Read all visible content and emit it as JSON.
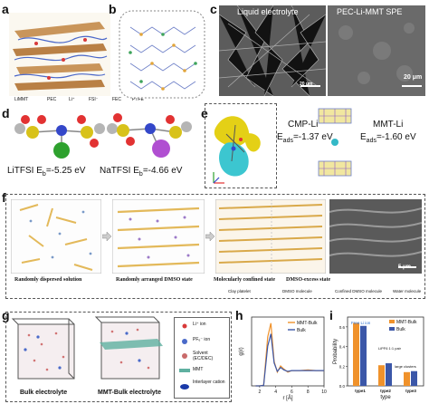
{
  "panels": {
    "a": {
      "letter": "a",
      "legend": [
        "LiMMT",
        "PEC",
        "Li⁺",
        "FSI⁻",
        "FEC",
        "PTFE"
      ]
    },
    "b": {
      "letter": "b"
    },
    "c": {
      "letter": "c",
      "left_title": "Liquid electrolyte",
      "right_title": "PEC-Li-MMT SPE",
      "scale_left": "20 μm",
      "scale_right": "20 μm"
    },
    "d": {
      "letter": "d",
      "label_left": "LiTFSI E",
      "sub_left": "b",
      "value_left": "=-5.25 eV",
      "label_right": "NaTFSI E",
      "sub_right": "b",
      "value_right": "=-4.66 eV"
    },
    "e": {
      "letter": "e",
      "left_name": "CMP-Li",
      "left_e": "E",
      "left_sub": "ads",
      "left_val": "=-1.37 eV",
      "right_name": "MMT-Li",
      "right_e": "E",
      "right_sub": "ads",
      "right_val": "=-1.60 eV"
    },
    "f": {
      "letter": "f",
      "captions": [
        "Randomly dispersed solution",
        "Randomly arranged DMSO state",
        "Molecularly confined state",
        "DMSO-excess state"
      ],
      "legend": [
        "Clay platelet",
        "DMSO molecule",
        "Confined DMSO molecule",
        "Water molecule"
      ],
      "scale": "5 μm"
    },
    "g": {
      "letter": "g",
      "captions": [
        "Bulk electrolyte",
        "MMT-Bulk electrolyte"
      ],
      "legend": [
        "Li⁺ ion",
        "PF₆⁻ ion",
        "Solvent (EC/DEC)",
        "MMT",
        "Interlayer cation"
      ]
    },
    "h": {
      "letter": "h",
      "ylabel": "g(r)",
      "xlabel": "r [Å]",
      "legend": [
        "MMT-Bulk",
        "Bulk"
      ],
      "xticks": [
        "2",
        "4",
        "6",
        "8",
        "10"
      ]
    },
    "i": {
      "letter": "i",
      "ylabel": "Probability",
      "xlabel": "type",
      "legend": [
        "MMT-Bulk",
        "Bulk"
      ],
      "annotations": [
        "Free Li ion",
        "LiPF6 1:1 pair",
        "large clusters"
      ],
      "yticks": [
        "0.0",
        "0.2",
        "0.4",
        "0.6"
      ]
    }
  },
  "colors": {
    "orange": "#f0922b",
    "blue": "#3b57a8",
    "yellow": "#e5c400",
    "cyan": "#34b9c7"
  },
  "chart_data": [
    {
      "type": "line",
      "panel": "h",
      "xlabel": "r [Å]",
      "ylabel": "g(r)",
      "xlim": [
        1,
        10
      ],
      "series": [
        {
          "name": "MMT-Bulk",
          "x": [
            1.5,
            2.0,
            2.5,
            3.0,
            3.4,
            3.8,
            4.2,
            4.6,
            5.0,
            5.5,
            6.0,
            7.0,
            8.0,
            9.0,
            10.0
          ],
          "y": [
            0,
            0,
            0.05,
            3.2,
            4.1,
            1.6,
            0.9,
            1.3,
            1.1,
            0.9,
            1.0,
            1.0,
            1.05,
            1.0,
            1.0
          ]
        },
        {
          "name": "Bulk",
          "x": [
            1.5,
            2.0,
            2.5,
            3.0,
            3.4,
            3.8,
            4.2,
            4.6,
            5.0,
            5.5,
            6.0,
            7.0,
            8.0,
            9.0,
            10.0
          ],
          "y": [
            0,
            0,
            0.03,
            2.6,
            3.4,
            1.5,
            0.95,
            1.2,
            1.05,
            0.95,
            1.0,
            1.0,
            1.0,
            1.0,
            1.0
          ]
        }
      ]
    },
    {
      "type": "bar",
      "panel": "i",
      "xlabel": "type",
      "ylabel": "Probability",
      "ylim": [
        0,
        0.7
      ],
      "categories": [
        "type1",
        "type2",
        "type3"
      ],
      "series": [
        {
          "name": "MMT-Bulk",
          "values": [
            0.64,
            0.21,
            0.14
          ]
        },
        {
          "name": "Bulk",
          "values": [
            0.61,
            0.23,
            0.15
          ]
        }
      ]
    }
  ]
}
